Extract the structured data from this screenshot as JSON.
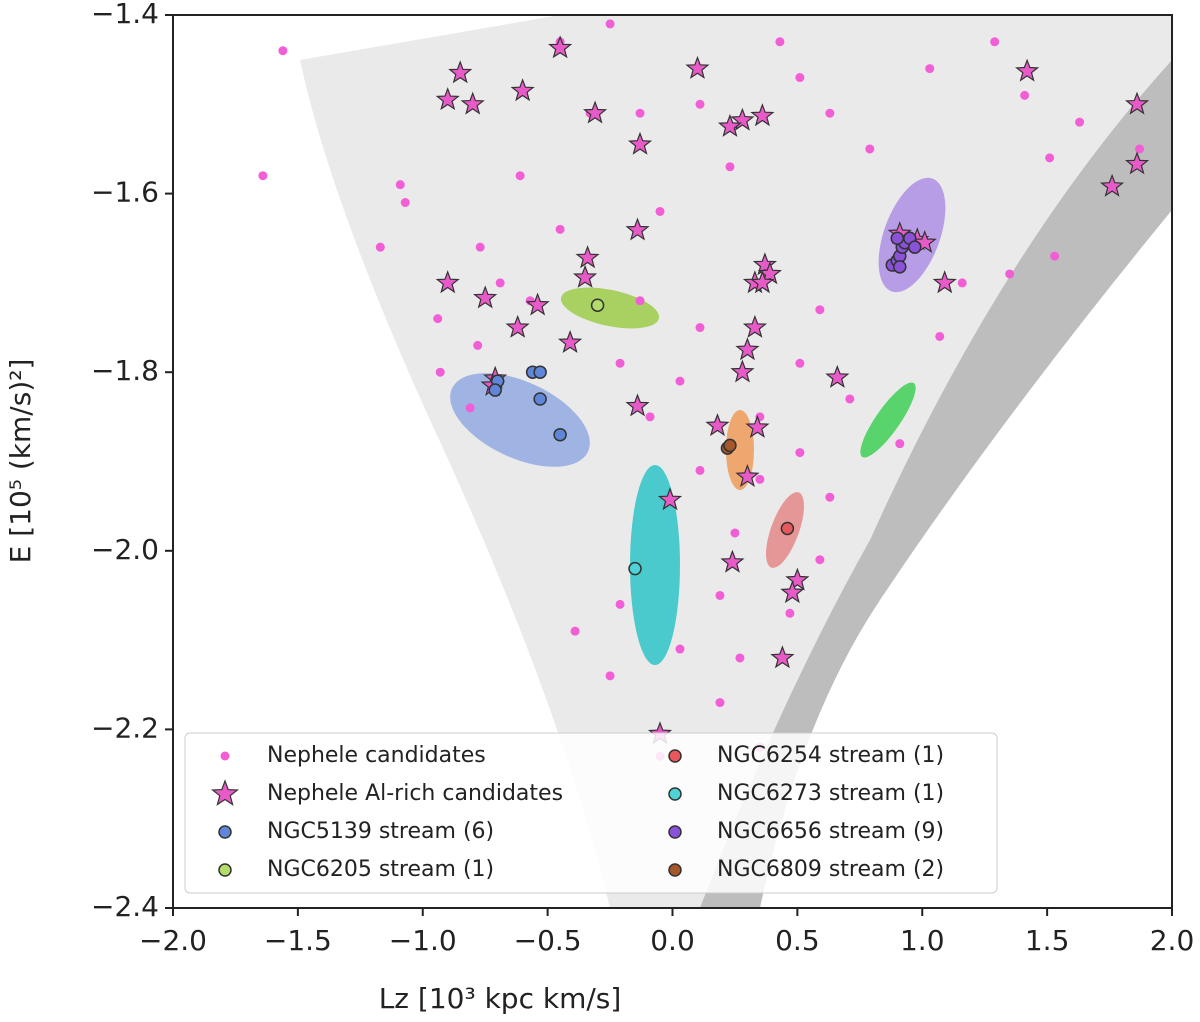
{
  "chart_data": {
    "type": "scatter",
    "xlabel": "Lz [10³ kpc km/s]",
    "ylabel": "E [10⁵ (km/s)²]",
    "xlim": [
      -2.0,
      2.0
    ],
    "ylim": [
      -2.4,
      -1.4
    ],
    "xticks": [
      {
        "value": -2.0,
        "label": "−2.0"
      },
      {
        "value": -1.5,
        "label": "−1.5"
      },
      {
        "value": -1.0,
        "label": "−1.0"
      },
      {
        "value": -0.5,
        "label": "−0.5"
      },
      {
        "value": 0.0,
        "label": "0.0"
      },
      {
        "value": 0.5,
        "label": "0.5"
      },
      {
        "value": 1.0,
        "label": "1.0"
      },
      {
        "value": 1.5,
        "label": "1.5"
      },
      {
        "value": 2.0,
        "label": "2.0"
      }
    ],
    "yticks": [
      {
        "value": -2.4,
        "label": "−2.4"
      },
      {
        "value": -2.2,
        "label": "−2.2"
      },
      {
        "value": -2.0,
        "label": "−2.0"
      },
      {
        "value": -1.8,
        "label": "−1.8"
      },
      {
        "value": -1.6,
        "label": "−1.6"
      },
      {
        "value": -1.4,
        "label": "−1.4"
      }
    ],
    "legend": "lower center",
    "series": [
      {
        "name": "Nephele candidates",
        "color": "#f25ed6",
        "marker": "dot",
        "x": [
          -1.56,
          -1.64,
          -1.09,
          -1.07,
          -1.17,
          -0.94,
          -0.78,
          -0.81,
          -0.57,
          -0.45,
          -0.33,
          -0.13,
          -0.05,
          0.11,
          0.23,
          0.43,
          0.51,
          0.63,
          0.79,
          1.03,
          1.29,
          1.41,
          1.51,
          1.63,
          1.87,
          1.35,
          1.53,
          1.16,
          1.07,
          0.71,
          0.51,
          0.35,
          0.11,
          0.03,
          -0.13,
          -0.21,
          -0.09,
          0.11,
          0.35,
          0.51,
          0.63,
          0.59,
          0.47,
          0.19,
          0.27,
          0.03,
          -0.21,
          -0.25,
          -0.39,
          0.19,
          -0.05,
          0.35,
          0.25,
          0.59,
          0.91,
          -0.45,
          -0.25,
          -0.61,
          -0.77,
          -0.69,
          -0.93
        ],
        "y": [
          -1.44,
          -1.58,
          -1.59,
          -1.61,
          -1.66,
          -1.74,
          -1.77,
          -1.84,
          -1.72,
          -1.64,
          -1.51,
          -1.51,
          -1.62,
          -1.5,
          -1.57,
          -1.43,
          -1.47,
          -1.51,
          -1.55,
          -1.46,
          -1.43,
          -1.49,
          -1.56,
          -1.52,
          -1.55,
          -1.69,
          -1.67,
          -1.7,
          -1.76,
          -1.83,
          -1.79,
          -1.85,
          -1.75,
          -1.81,
          -1.72,
          -1.79,
          -1.85,
          -1.91,
          -1.92,
          -1.89,
          -1.94,
          -2.01,
          -2.07,
          -2.05,
          -2.12,
          -2.11,
          -2.06,
          -2.14,
          -2.09,
          -2.17,
          -2.23,
          -2.22,
          -1.98,
          -1.73,
          -1.88,
          -1.43,
          -1.41,
          -1.58,
          -1.66,
          -1.7,
          -1.8
        ]
      },
      {
        "name": "Nephele Al-rich candidates",
        "color": "#e85ac8",
        "marker": "star",
        "x": [
          -0.85,
          -0.9,
          -0.8,
          -0.6,
          -0.45,
          -0.31,
          0.1,
          0.36,
          0.28,
          0.23,
          1.42,
          1.86,
          1.86,
          1.76,
          -0.13,
          -0.9,
          -0.75,
          -0.62,
          -0.54,
          -0.41,
          -0.34,
          -0.35,
          -0.14,
          0.37,
          0.39,
          0.33,
          0.36,
          0.33,
          0.3,
          0.28,
          0.66,
          0.18,
          0.34,
          -0.14,
          0.3,
          -0.01,
          0.24,
          0.5,
          0.48,
          0.44,
          -0.05,
          1.09,
          0.91,
          0.98,
          1.01,
          -0.71,
          -0.72
        ],
        "y": [
          -1.465,
          -1.495,
          -1.5,
          -1.485,
          -1.437,
          -1.51,
          -1.46,
          -1.513,
          -1.518,
          -1.525,
          -1.463,
          -1.5,
          -1.567,
          -1.592,
          -1.545,
          -1.7,
          -1.717,
          -1.75,
          -1.725,
          -1.767,
          -1.672,
          -1.694,
          -1.641,
          -1.68,
          -1.69,
          -1.7,
          -1.7,
          -1.75,
          -1.775,
          -1.8,
          -1.806,
          -1.86,
          -1.862,
          -1.838,
          -1.917,
          -1.943,
          -2.013,
          -2.033,
          -2.047,
          -2.12,
          -2.205,
          -1.7,
          -1.645,
          -1.652,
          -1.655,
          -1.807,
          -1.815
        ]
      },
      {
        "name": "NGC5139 stream (6)",
        "color": "#5f86d8",
        "marker": "circle",
        "x": [
          -0.7,
          -0.56,
          -0.53,
          -0.53,
          -0.45,
          -0.71
        ],
        "y": [
          -1.81,
          -1.8,
          -1.8,
          -1.83,
          -1.87,
          -1.82
        ]
      },
      {
        "name": "NGC6205 stream (1)",
        "color": "#b3dd6b",
        "marker": "circle",
        "x": [
          -0.3
        ],
        "y": [
          -1.725
        ]
      },
      {
        "name": "NGC6254 stream (1)",
        "color": "#e8585a",
        "marker": "circle",
        "x": [
          0.46
        ],
        "y": [
          -1.975
        ]
      },
      {
        "name": "NGC6273 stream (1)",
        "color": "#4fd3d6",
        "marker": "circle",
        "x": [
          -0.15
        ],
        "y": [
          -2.02
        ]
      },
      {
        "name": "NGC6656 stream (9)",
        "color": "#8a52d8",
        "marker": "circle",
        "x": [
          0.88,
          0.9,
          0.91,
          0.92,
          0.93,
          0.95,
          0.9,
          0.97,
          0.91
        ],
        "y": [
          -1.68,
          -1.675,
          -1.67,
          -1.66,
          -1.655,
          -1.65,
          -1.65,
          -1.66,
          -1.682
        ]
      },
      {
        "name": "NGC6809 stream (2)",
        "color": "#a5562b",
        "marker": "circle",
        "x": [
          0.22,
          0.23
        ],
        "y": [
          -1.885,
          -1.882
        ]
      }
    ]
  }
}
